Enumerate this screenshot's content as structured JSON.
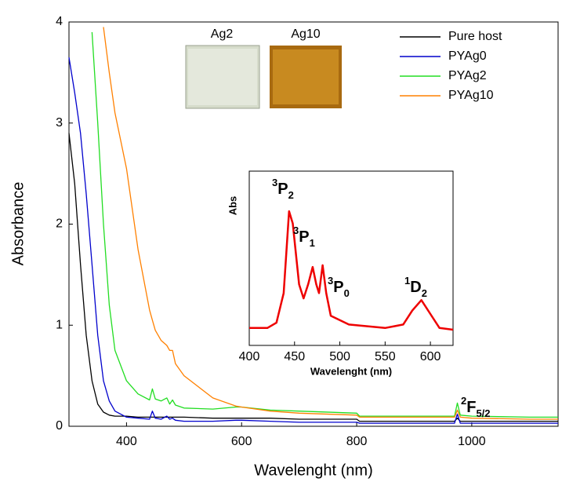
{
  "chart_data": [
    {
      "type": "line",
      "x_label": "Wavelenght (nm)",
      "y_label": "Absorbance",
      "xlim": [
        300,
        1150
      ],
      "xticks": [
        400,
        600,
        800,
        1000
      ],
      "ylim": [
        0,
        4
      ],
      "yticks": [
        0,
        1,
        2,
        3,
        4
      ],
      "legend": "upper right",
      "x": [
        300,
        310,
        320,
        330,
        340,
        350,
        360,
        370,
        380,
        400,
        420,
        440,
        445,
        450,
        460,
        470,
        475,
        480,
        485,
        500,
        550,
        590,
        600,
        650,
        700,
        800,
        805,
        900,
        970,
        975,
        980,
        1000,
        1100,
        1150
      ],
      "series": [
        {
          "name": "Pure host",
          "color": "#000000",
          "values": [
            2.9,
            2.4,
            1.6,
            0.9,
            0.45,
            0.22,
            0.14,
            0.11,
            0.1,
            0.1,
            0.09,
            0.09,
            0.09,
            0.09,
            0.09,
            0.09,
            0.09,
            0.09,
            0.09,
            0.09,
            0.08,
            0.08,
            0.08,
            0.08,
            0.07,
            0.07,
            0.05,
            0.05,
            0.05,
            0.08,
            0.05,
            0.05,
            0.05,
            0.05
          ]
        },
        {
          "name": "PYAg0",
          "color": "#0000cc",
          "values": [
            3.65,
            3.3,
            2.9,
            2.3,
            1.6,
            0.9,
            0.45,
            0.25,
            0.15,
            0.09,
            0.08,
            0.07,
            0.15,
            0.08,
            0.07,
            0.1,
            0.07,
            0.08,
            0.06,
            0.05,
            0.05,
            0.06,
            0.06,
            0.05,
            0.04,
            0.04,
            0.03,
            0.03,
            0.03,
            0.12,
            0.03,
            0.03,
            0.03,
            0.03
          ]
        },
        {
          "name": "PYAg2",
          "color": "#22dd22",
          "values": [
            null,
            null,
            null,
            null,
            3.9,
            3.0,
            2.0,
            1.2,
            0.75,
            0.45,
            0.32,
            0.26,
            0.37,
            0.27,
            0.25,
            0.28,
            0.22,
            0.26,
            0.21,
            0.18,
            0.17,
            0.19,
            0.19,
            0.16,
            0.15,
            0.13,
            0.1,
            0.1,
            0.1,
            0.23,
            0.11,
            0.1,
            0.09,
            0.09
          ]
        },
        {
          "name": "PYAg10",
          "color": "#ff8000",
          "values": [
            null,
            null,
            null,
            null,
            null,
            null,
            3.95,
            3.5,
            3.1,
            2.55,
            1.75,
            1.15,
            1.05,
            0.95,
            0.85,
            0.8,
            0.75,
            0.75,
            0.62,
            0.5,
            0.28,
            0.2,
            0.19,
            0.15,
            0.13,
            0.11,
            0.09,
            0.09,
            0.09,
            0.16,
            0.09,
            0.08,
            0.07,
            0.07
          ]
        }
      ],
      "photos": [
        "Ag2",
        "Ag10"
      ],
      "annotations": [
        {
          "sup": "2",
          "main": "F",
          "sub": "5/2"
        }
      ]
    },
    {
      "type": "line",
      "x_label": "Wavelenght (nm)",
      "y_label": "Abs",
      "xlim": [
        400,
        625
      ],
      "xticks": [
        400,
        450,
        500,
        550,
        600
      ],
      "ylim": [
        0,
        1
      ],
      "x": [
        400,
        420,
        430,
        438,
        444,
        448,
        455,
        460,
        465,
        470,
        474,
        477,
        481,
        485,
        490,
        510,
        550,
        570,
        580,
        590,
        600,
        610,
        625
      ],
      "series": [
        {
          "color": "#ee0000",
          "values": [
            0.1,
            0.1,
            0.13,
            0.3,
            0.77,
            0.7,
            0.35,
            0.27,
            0.35,
            0.45,
            0.35,
            0.3,
            0.46,
            0.3,
            0.17,
            0.12,
            0.1,
            0.12,
            0.2,
            0.26,
            0.18,
            0.1,
            0.09
          ]
        }
      ],
      "annotations": [
        {
          "sup": "3",
          "main": "P",
          "sub": "2"
        },
        {
          "sup": "3",
          "main": "P",
          "sub": "1"
        },
        {
          "sup": "3",
          "main": "P",
          "sub": "0"
        },
        {
          "sup": "1",
          "main": "D",
          "sub": "2"
        }
      ]
    }
  ]
}
